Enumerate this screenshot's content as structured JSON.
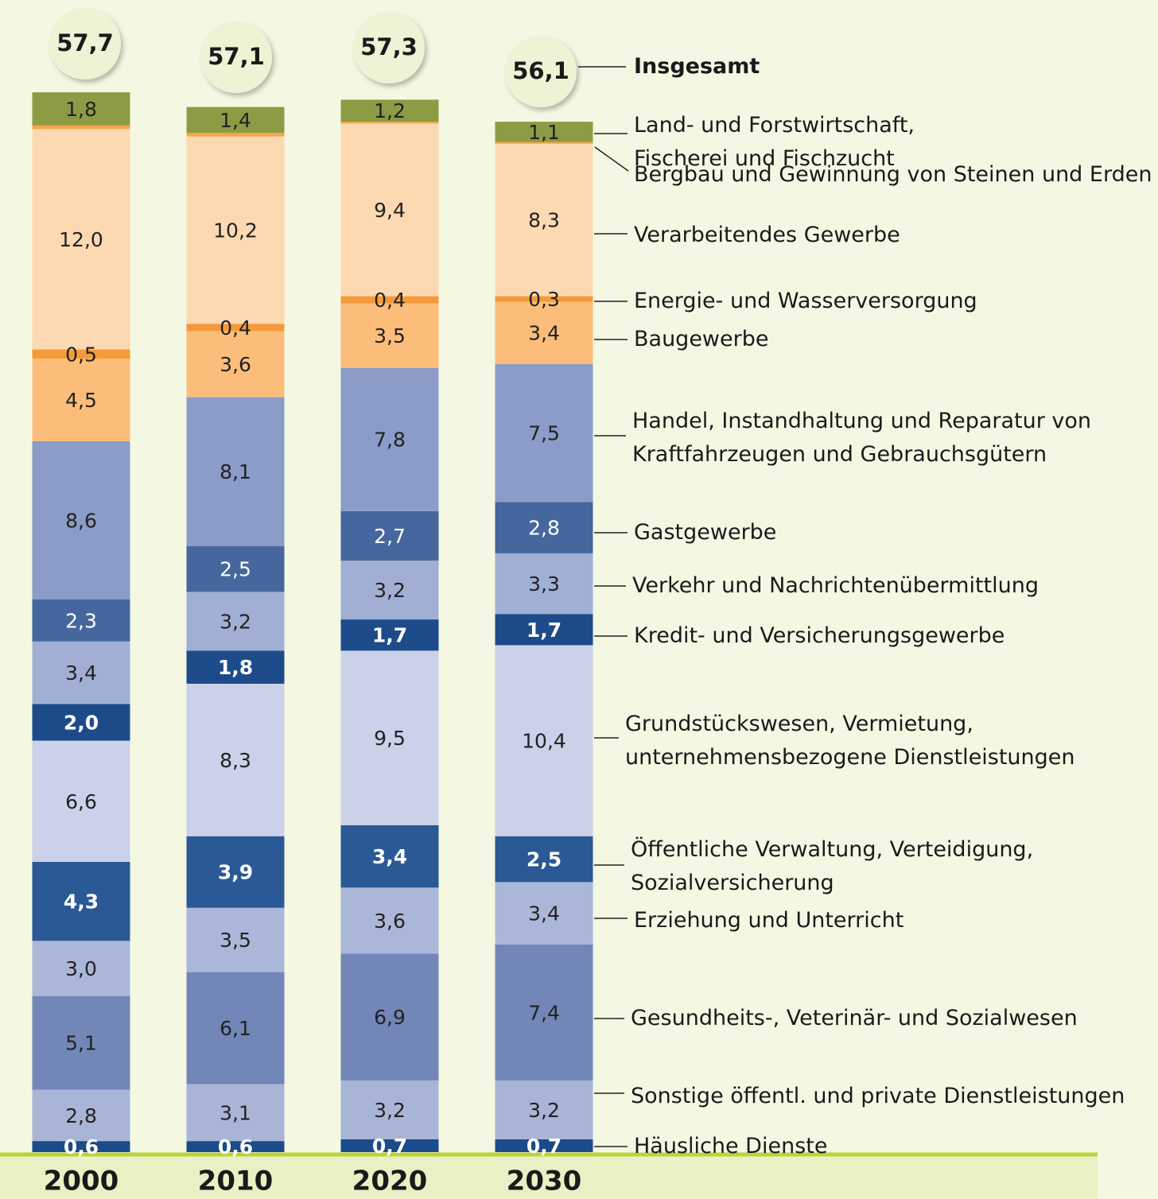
{
  "chart_data": {
    "type": "stacked_bar",
    "categories": [
      "2000",
      "2010",
      "2020",
      "2030"
    ],
    "totals": {
      "name": "Insgesamt",
      "values": [
        57.7,
        57.1,
        57.3,
        56.1
      ],
      "value_labels": [
        "57,7",
        "57,1",
        "57,3",
        "56,1"
      ]
    },
    "series": [
      {
        "name": "Häusliche Dienste",
        "color": "#1b4b88",
        "values": [
          0.6,
          0.6,
          0.7,
          0.7
        ],
        "value_labels": [
          "0,6",
          "0,6",
          "0,7",
          "0,7"
        ]
      },
      {
        "name": "Sonstige öffentl. und private Dienstleistungen",
        "color": "#a9b5d7",
        "values": [
          2.8,
          3.1,
          3.2,
          3.2
        ],
        "value_labels": [
          "2,8",
          "3,1",
          "3,2",
          "3,2"
        ]
      },
      {
        "name": "Gesundheits-, Veterinär- und Sozialwesen",
        "color": "#7286b8",
        "values": [
          5.1,
          6.1,
          6.9,
          7.4
        ],
        "value_labels": [
          "5,1",
          "6,1",
          "6,9",
          "7,4"
        ]
      },
      {
        "name": "Erziehung und Unterricht",
        "color": "#abb7d9",
        "values": [
          3.0,
          3.5,
          3.6,
          3.4
        ],
        "value_labels": [
          "3,0",
          "3,5",
          "3,6",
          "3,4"
        ]
      },
      {
        "name": "Öffentliche Verwaltung, Verteidigung,\nSozialversicherung",
        "color": "#2b5996",
        "values": [
          4.3,
          3.9,
          3.4,
          2.5
        ],
        "value_labels": [
          "4,3",
          "3,9",
          "3,4",
          "2,5"
        ]
      },
      {
        "name": "Grundstückswesen, Vermietung,\nunternehmensbezogene Dienstleistungen",
        "color": "#cbd1e8",
        "values": [
          6.6,
          8.3,
          9.5,
          10.4
        ],
        "value_labels": [
          "6,6",
          "8,3",
          "9,5",
          "10,4"
        ]
      },
      {
        "name": "Kredit- und Versicherungsgewerbe",
        "color": "#1d4b8a",
        "values": [
          2.0,
          1.8,
          1.7,
          1.7
        ],
        "value_labels": [
          "2,0",
          "1,8",
          "1,7",
          "1,7"
        ]
      },
      {
        "name": "Verkehr und Nachrichtenübermittlung",
        "color": "#a1afd4",
        "values": [
          3.4,
          3.2,
          3.2,
          3.3
        ],
        "value_labels": [
          "3,4",
          "3,2",
          "3,2",
          "3,3"
        ]
      },
      {
        "name": "Gastgewerbe",
        "color": "#46679e",
        "values": [
          2.3,
          2.5,
          2.7,
          2.8
        ],
        "value_labels": [
          "2,3",
          "2,5",
          "2,7",
          "2,8"
        ]
      },
      {
        "name": "Handel, Instandhaltung und Reparatur von\nKraftfahrzeugen und Gebrauchsgütern",
        "color": "#8a9cc7",
        "values": [
          8.6,
          8.1,
          7.8,
          7.5
        ],
        "value_labels": [
          "8,6",
          "8,1",
          "7,8",
          "7,5"
        ]
      },
      {
        "name": "Baugewerbe",
        "color": "#fcbd7b",
        "values": [
          4.5,
          3.6,
          3.5,
          3.4
        ],
        "value_labels": [
          "4,5",
          "3,6",
          "3,5",
          "3,4"
        ]
      },
      {
        "name": "Energie- und Wasserversorgung",
        "color": "#f59a3a",
        "values": [
          0.5,
          0.4,
          0.4,
          0.3
        ],
        "value_labels": [
          "0,5",
          "0,4",
          "0,4",
          "0,3"
        ]
      },
      {
        "name": "Verarbeitendes Gewerbe",
        "color": "#fdd9b2",
        "values": [
          12.0,
          10.2,
          9.4,
          8.3
        ],
        "value_labels": [
          "12,0",
          "10,2",
          "9,4",
          "8,3"
        ]
      },
      {
        "name": "Bergbau und Gewinnung von Steinen und Erden",
        "color": "#f7a44a",
        "values": [
          0.2,
          0.2,
          0.1,
          0.1
        ]
      },
      {
        "name": "Land- und Forstwirtschaft,\nFischerei und Fischzucht",
        "color": "#8d9b45",
        "values": [
          1.8,
          1.4,
          1.2,
          1.1
        ],
        "value_labels": [
          "1,8",
          "1,4",
          "1,2",
          "1,1"
        ]
      }
    ]
  }
}
